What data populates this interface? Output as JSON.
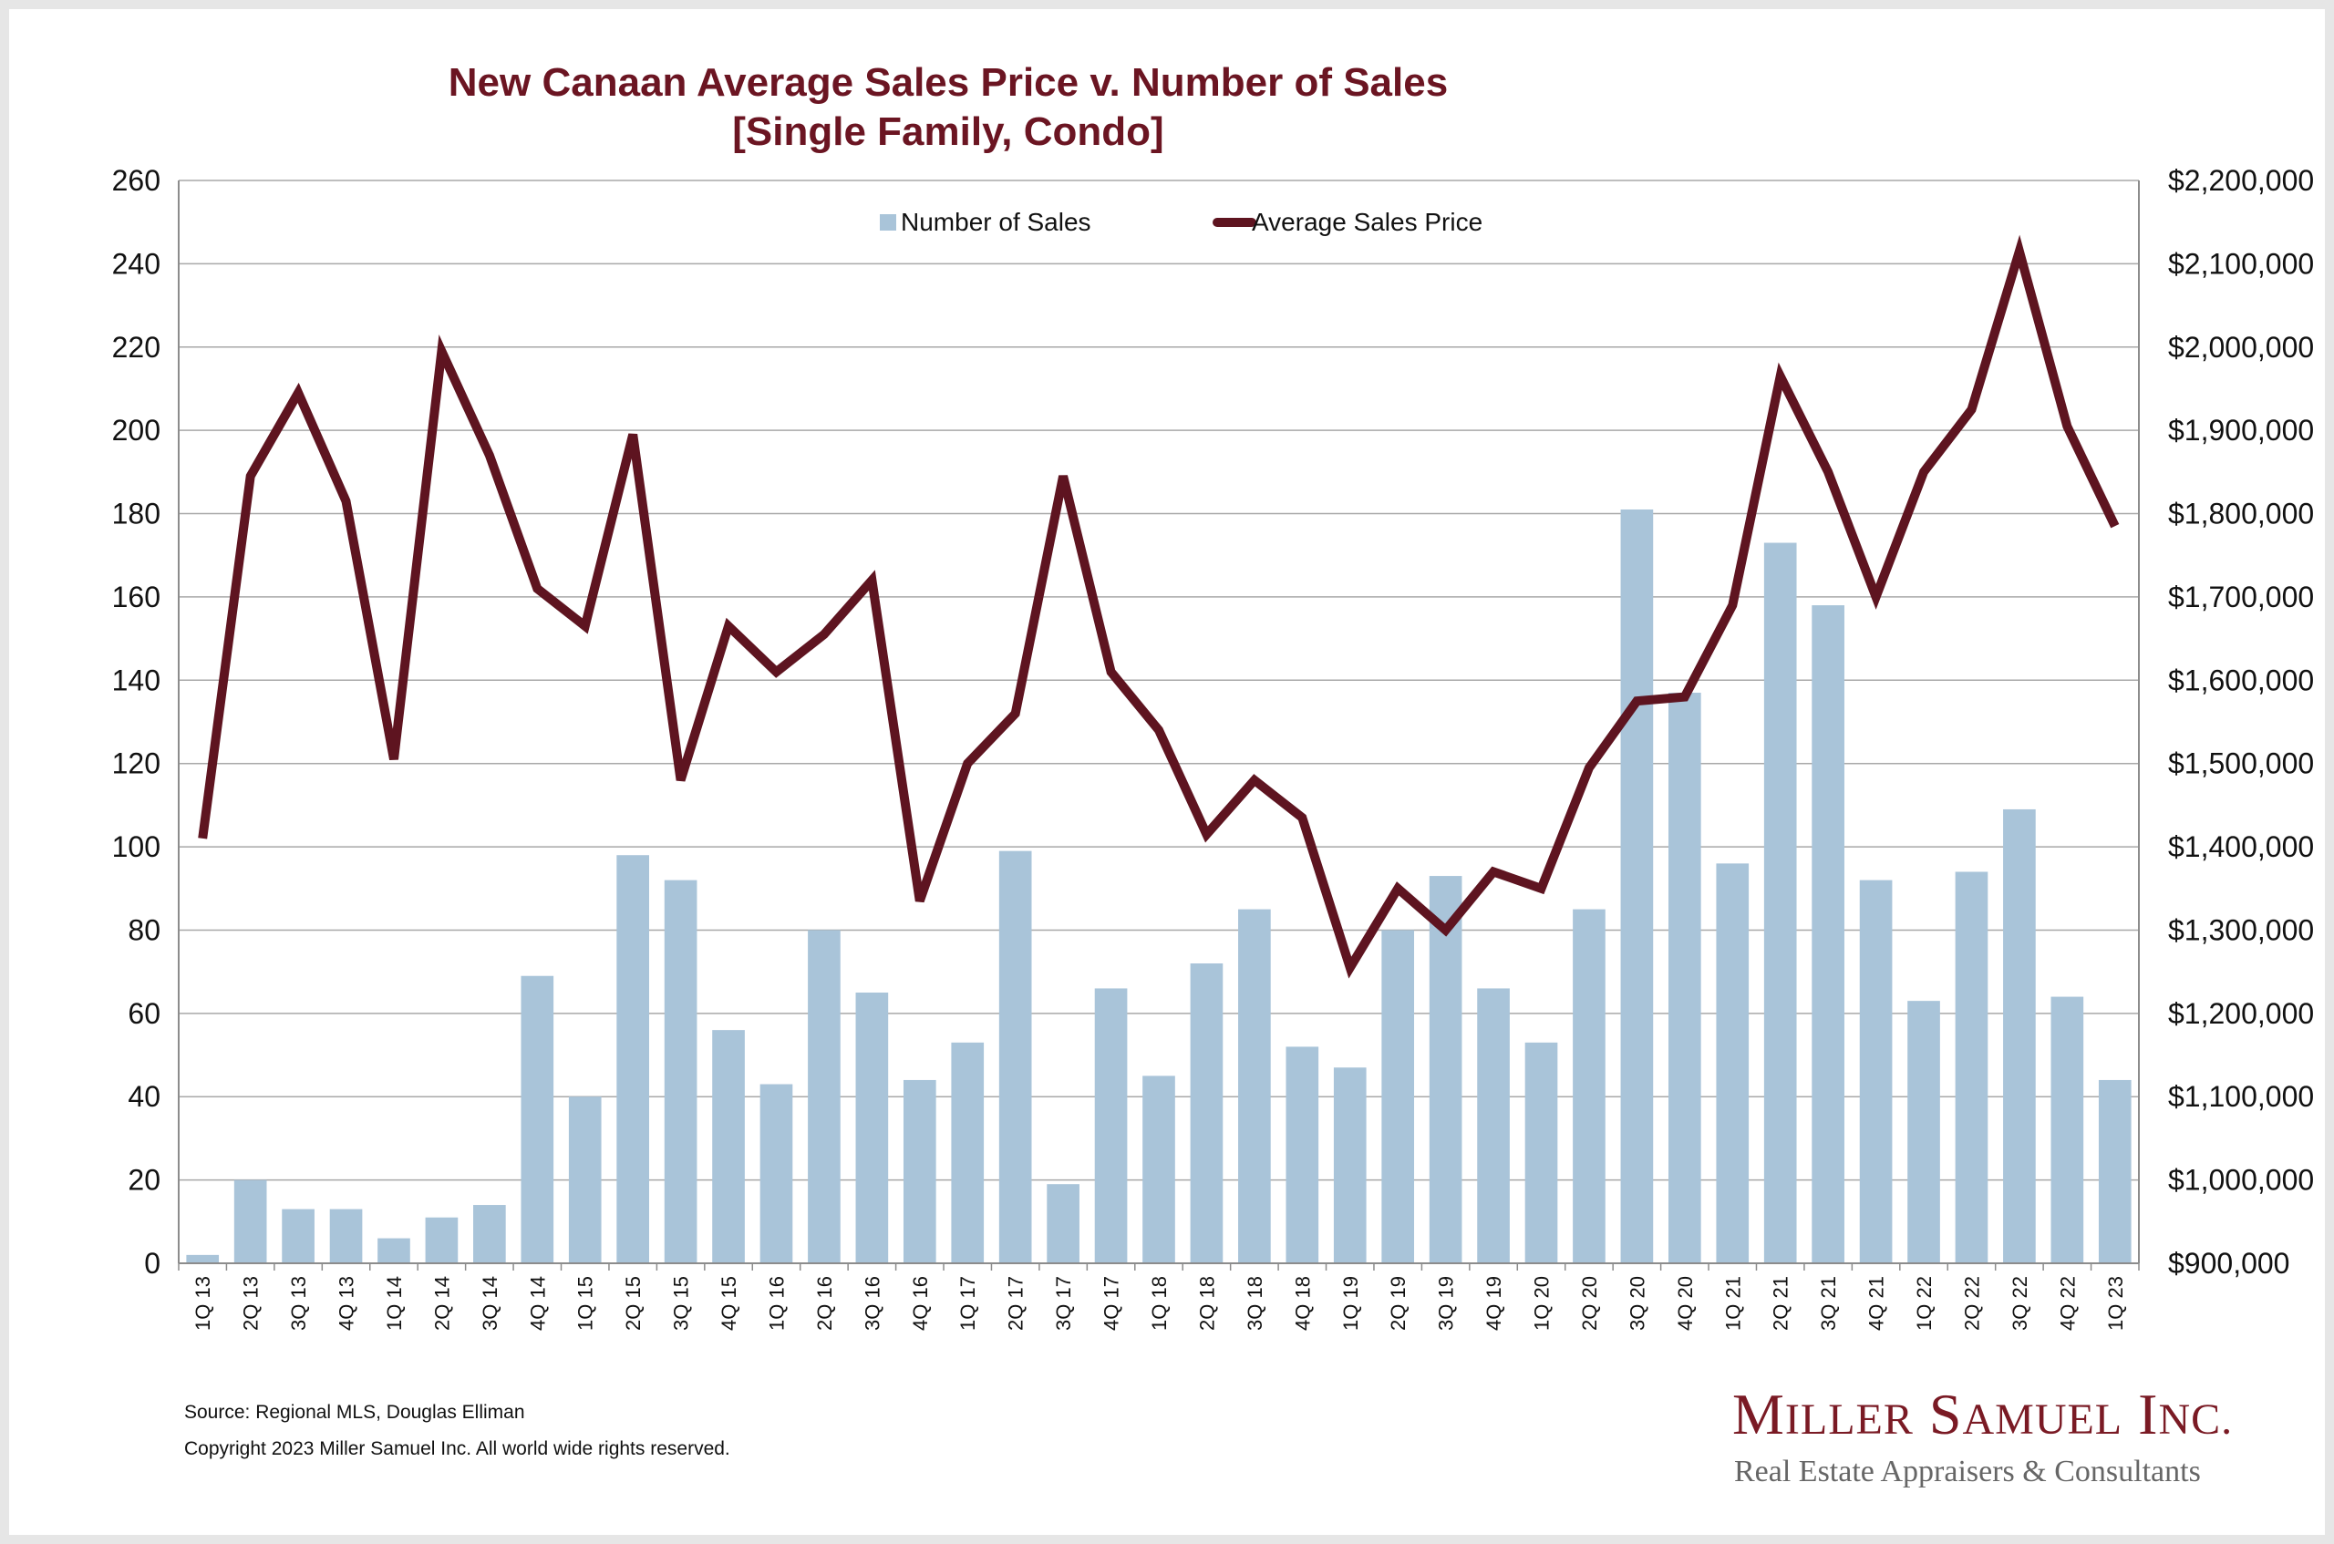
{
  "chart_data": {
    "type": "bar+line",
    "title": [
      "New Canaan Average Sales Price v. Number of Sales",
      "[Single Family, Condo]"
    ],
    "categories": [
      "1Q 13",
      "2Q 13",
      "3Q 13",
      "4Q 13",
      "1Q 14",
      "2Q 14",
      "3Q 14",
      "4Q 14",
      "1Q 15",
      "2Q 15",
      "3Q 15",
      "4Q 15",
      "1Q 16",
      "2Q 16",
      "3Q 16",
      "4Q 16",
      "1Q 17",
      "2Q 17",
      "3Q 17",
      "4Q 17",
      "1Q 18",
      "2Q 18",
      "3Q 18",
      "4Q 18",
      "1Q 19",
      "2Q 19",
      "3Q 19",
      "4Q 19",
      "1Q 20",
      "2Q 20",
      "3Q 20",
      "4Q 20",
      "1Q 21",
      "2Q 21",
      "3Q 21",
      "4Q 21",
      "1Q 22",
      "2Q 22",
      "3Q 22",
      "4Q 22",
      "1Q 23"
    ],
    "series": [
      {
        "name": "Number of Sales",
        "type": "bar",
        "axis": "left",
        "color": "#a9c4d9",
        "values": [
          2,
          20,
          13,
          13,
          6,
          11,
          14,
          69,
          40,
          98,
          92,
          56,
          43,
          80,
          65,
          44,
          53,
          99,
          19,
          66,
          45,
          72,
          85,
          52,
          47,
          80,
          93,
          66,
          53,
          85,
          181,
          137,
          96,
          173,
          158,
          92,
          63,
          94,
          109,
          64,
          44
        ]
      },
      {
        "name": "Average Sales Price",
        "type": "line",
        "axis": "right",
        "color": "#5e1420",
        "values": [
          1410000,
          1845000,
          1945000,
          1815000,
          1505000,
          1995000,
          1870000,
          1710000,
          1665000,
          1895000,
          1480000,
          1665000,
          1610000,
          1655000,
          1720000,
          1335000,
          1500000,
          1560000,
          1845000,
          1610000,
          1540000,
          1415000,
          1480000,
          1435000,
          1255000,
          1350000,
          1300000,
          1370000,
          1350000,
          1495000,
          1575000,
          1580000,
          1690000,
          1965000,
          1850000,
          1700000,
          1850000,
          1925000,
          2115000,
          1905000,
          1785000
        ]
      }
    ],
    "y_left": {
      "min": 0,
      "max": 260,
      "ticks": [
        0,
        20,
        40,
        60,
        80,
        100,
        120,
        140,
        160,
        180,
        200,
        220,
        240,
        260
      ]
    },
    "y_right": {
      "min": 900000,
      "max": 2200000,
      "tick_labels": [
        "$900,000",
        "$1,000,000",
        "$1,100,000",
        "$1,200,000",
        "$1,300,000",
        "$1,400,000",
        "$1,500,000",
        "$1,600,000",
        "$1,700,000",
        "$1,800,000",
        "$1,900,000",
        "$2,000,000",
        "$2,100,000",
        "$2,200,000"
      ]
    },
    "grid": true,
    "legend_position": "top-center"
  },
  "footer": {
    "source": "Source: Regional MLS, Douglas Elliman",
    "copyright": "Copyright 2023 Miller Samuel Inc.  All world wide rights reserved."
  },
  "logo": {
    "name_initial_1": "M",
    "name_rest_1": "ILLER",
    "name_initial_2": "S",
    "name_rest_2": "AMUEL",
    "name_initial_3": "I",
    "name_rest_3": "NC.",
    "tagline": "Real Estate Appraisers & Consultants"
  }
}
